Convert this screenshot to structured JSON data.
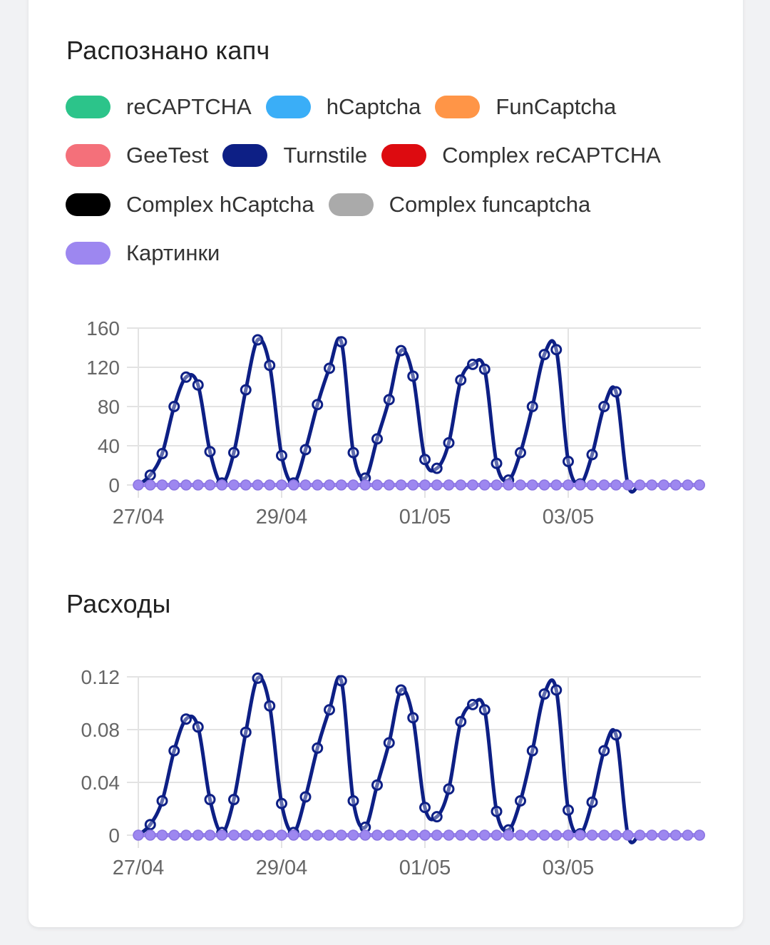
{
  "colors": {
    "recaptcha": "#2cc48a",
    "hcaptcha": "#3aaef7",
    "funcaptcha": "#ff9547",
    "geetest": "#f4707a",
    "turnstile": "#0d1f85",
    "complex_recaptcha": "#dd0b10",
    "complex_hcaptcha": "#000000",
    "complex_funcaptcha": "#aaaaaa",
    "images": "#9d87f0"
  },
  "recognized": {
    "title": "Распознано капч",
    "legend": [
      {
        "label": "reCAPTCHA",
        "color": "#2cc48a"
      },
      {
        "label": "hCaptcha",
        "color": "#3aaef7"
      },
      {
        "label": "FunCaptcha",
        "color": "#ff9547"
      },
      {
        "label": "GeeTest",
        "color": "#f4707a"
      },
      {
        "label": "Turnstile",
        "color": "#0d1f85"
      },
      {
        "label": "Complex reCAPTCHA",
        "color": "#dd0b10"
      },
      {
        "label": "Complex hCaptcha",
        "color": "#000000"
      },
      {
        "label": "Complex funcaptcha",
        "color": "#aaaaaa"
      },
      {
        "label": "Картинки",
        "color": "#9d87f0"
      }
    ]
  },
  "expenses": {
    "title": "Расходы"
  },
  "chart_data": [
    {
      "type": "line",
      "title": "Распознано капч",
      "x_tick_labels": [
        "27/04",
        "29/04",
        "01/05",
        "03/05"
      ],
      "y_tick_labels": [
        "0",
        "40",
        "80",
        "120",
        "160"
      ],
      "ylim": [
        0,
        160
      ],
      "grid": true,
      "interval": "hourly (every 4h)",
      "series": [
        {
          "name": "Turnstile",
          "color": "#0d1f85",
          "values": [
            0,
            10,
            32,
            80,
            110,
            102,
            34,
            2,
            33,
            97,
            148,
            122,
            30,
            2,
            36,
            82,
            119,
            146,
            33,
            7,
            47,
            87,
            137,
            111,
            26,
            17,
            43,
            107,
            123,
            118,
            22,
            5,
            33,
            80,
            133,
            138,
            24,
            1,
            31,
            80,
            95,
            0,
            0,
            0,
            0,
            0,
            0,
            0
          ]
        },
        {
          "name": "reCAPTCHA",
          "color": "#2cc48a",
          "values": "all 0"
        },
        {
          "name": "hCaptcha",
          "color": "#3aaef7",
          "values": "all 0"
        },
        {
          "name": "FunCaptcha",
          "color": "#ff9547",
          "values": "all 0"
        },
        {
          "name": "GeeTest",
          "color": "#f4707a",
          "values": "all 0"
        },
        {
          "name": "Complex reCAPTCHA",
          "color": "#dd0b10",
          "values": "all 0"
        },
        {
          "name": "Complex hCaptcha",
          "color": "#000000",
          "values": "all 0"
        },
        {
          "name": "Complex funcaptcha",
          "color": "#aaaaaa",
          "values": "all 0"
        },
        {
          "name": "Картинки",
          "color": "#9d87f0",
          "values": "all 0"
        }
      ]
    },
    {
      "type": "line",
      "title": "Расходы",
      "x_tick_labels": [
        "27/04",
        "29/04",
        "01/05",
        "03/05"
      ],
      "y_tick_labels": [
        "0",
        "0.04",
        "0.08",
        "0.12"
      ],
      "ylim": [
        0,
        0.12
      ],
      "grid": true,
      "series": [
        {
          "name": "Turnstile",
          "color": "#0d1f85",
          "values": [
            0,
            0.008,
            0.026,
            0.064,
            0.088,
            0.082,
            0.027,
            0.002,
            0.027,
            0.078,
            0.119,
            0.098,
            0.024,
            0.002,
            0.029,
            0.066,
            0.095,
            0.117,
            0.026,
            0.006,
            0.038,
            0.07,
            0.11,
            0.089,
            0.021,
            0.014,
            0.035,
            0.086,
            0.099,
            0.095,
            0.018,
            0.004,
            0.026,
            0.064,
            0.107,
            0.11,
            0.019,
            0.001,
            0.025,
            0.064,
            0.076,
            0,
            0,
            0,
            0,
            0,
            0,
            0
          ]
        },
        {
          "name": "Картинки",
          "color": "#9d87f0",
          "values": "all 0"
        }
      ]
    }
  ]
}
